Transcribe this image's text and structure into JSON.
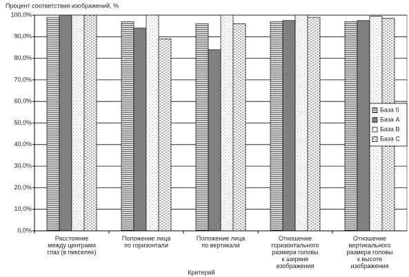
{
  "chart_data": {
    "type": "bar",
    "y_label": "Процент соответствия изображений, %",
    "x_label": "Критерий",
    "categories": [
      "Расстояние\nмежду центрами\nглаз (в пикселях)",
      "Положение лица\nпо горизонтали",
      "Положение лица\nпо вертикали",
      "Отношение\nгоризонтального\nразмера головы\nк ширине\nизображения",
      "Отношение\nвертикального\nразмера головы\nк высоте\nизображения"
    ],
    "series": [
      {
        "name": "База 0",
        "pattern": "hlines",
        "color": "#000000",
        "values": [
          99,
          97,
          96,
          97,
          97
        ]
      },
      {
        "name": "База А",
        "pattern": "solid",
        "color": "#808080",
        "values": [
          100,
          94,
          84,
          97.5,
          97.5
        ]
      },
      {
        "name": "База B",
        "pattern": "dots",
        "color": "#000000",
        "values": [
          100,
          100,
          100,
          100,
          99.5
        ]
      },
      {
        "name": "База C",
        "pattern": "dashes",
        "color": "#000000",
        "values": [
          100,
          89,
          96,
          99,
          98.5
        ]
      }
    ],
    "ylim": [
      0,
      100
    ],
    "yticks": [
      {
        "value": 0,
        "label": "0,0%"
      },
      {
        "value": 10,
        "label": "10,0%"
      },
      {
        "value": 20,
        "label": "20,0%"
      },
      {
        "value": 30,
        "label": "30,0%"
      },
      {
        "value": 40,
        "label": "40,0%"
      },
      {
        "value": 50,
        "label": "50,0%"
      },
      {
        "value": 60,
        "label": "60,0%"
      },
      {
        "value": 70,
        "label": "70,0%"
      },
      {
        "value": 80,
        "label": "80,0%"
      },
      {
        "value": 90,
        "label": "90,0%"
      },
      {
        "value": 100,
        "label": "100,0%"
      }
    ],
    "grid": true,
    "legend": "right"
  }
}
